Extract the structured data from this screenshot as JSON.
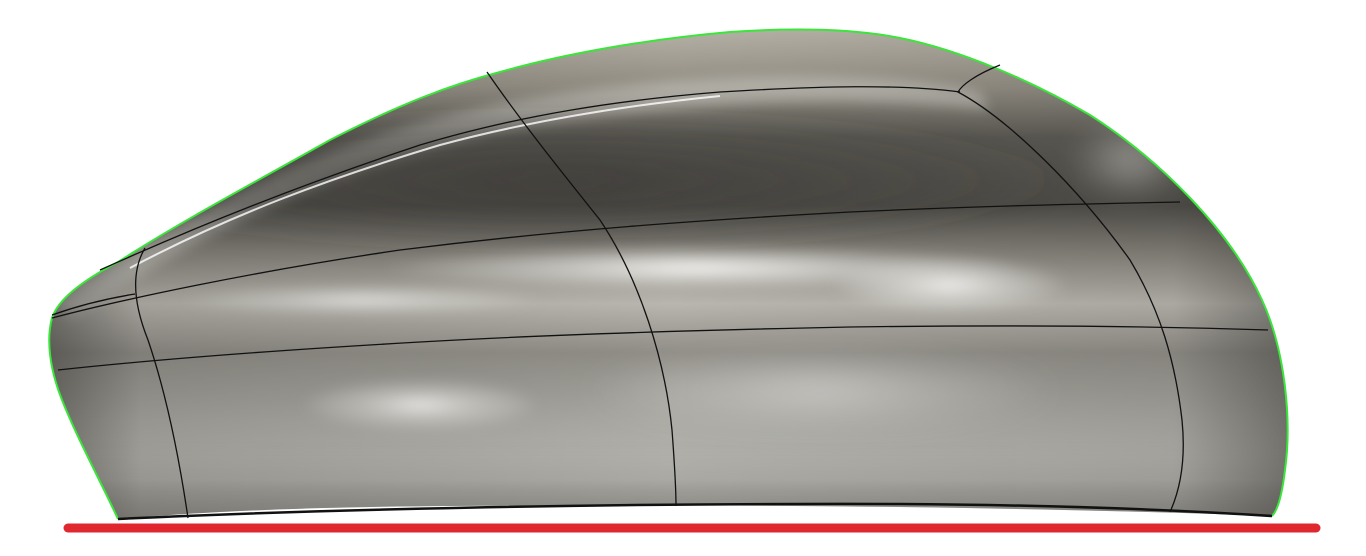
{
  "viewport": {
    "model": "surface-body",
    "colors": {
      "background": "#ffffff",
      "surface_dark": "#4a4843",
      "surface_mid": "#8d897f",
      "surface_light": "#c9c6bd",
      "highlight": "#ffffff",
      "silhouette_edge": "#39e639",
      "isoparm_lines": "#111111",
      "ground_line": "#e0262e"
    }
  }
}
